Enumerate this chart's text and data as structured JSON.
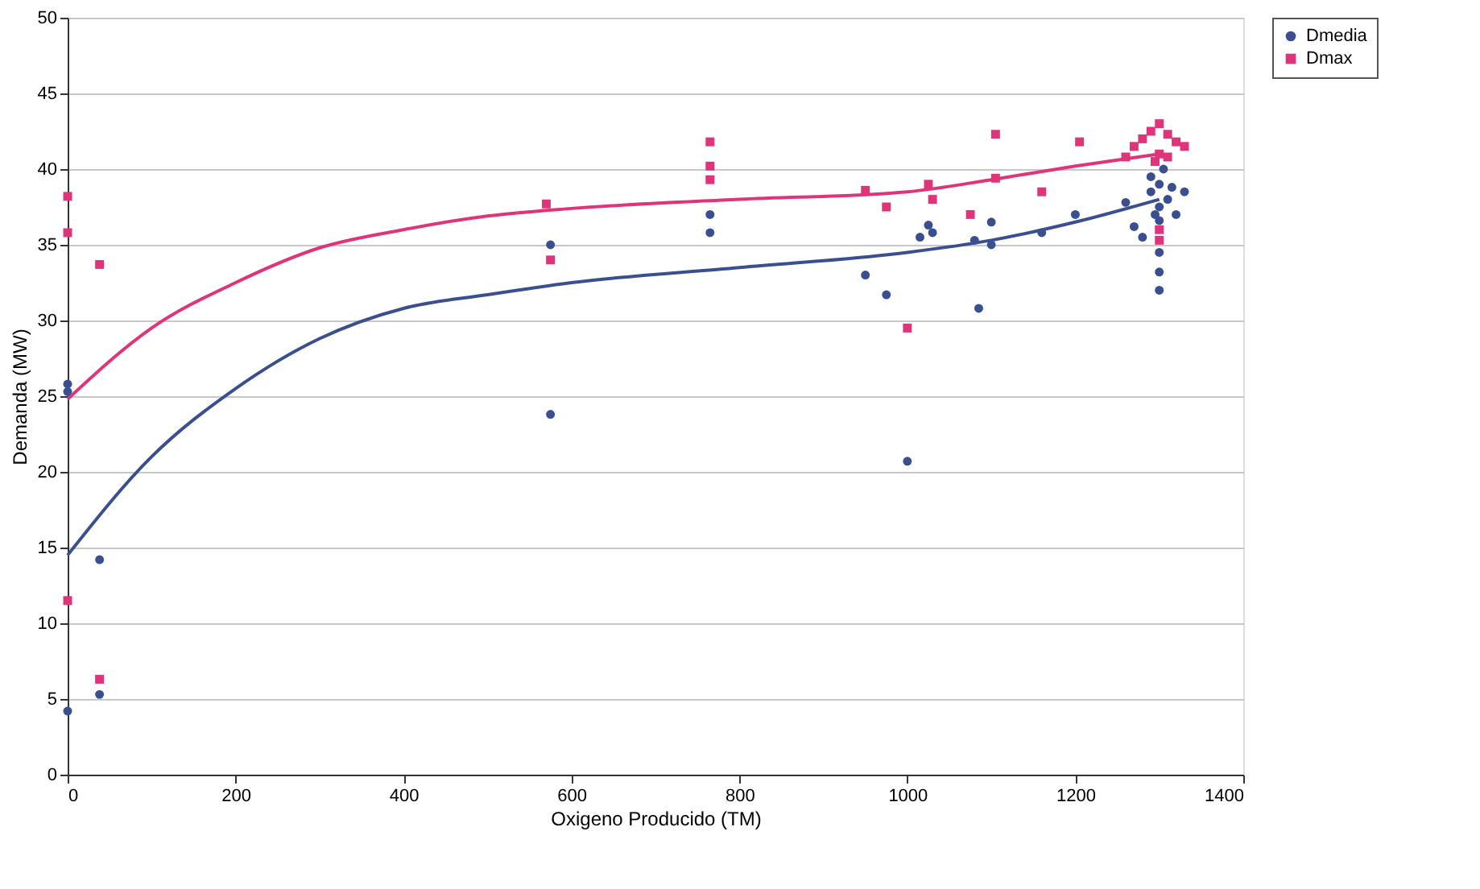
{
  "chart_data": {
    "type": "scatter",
    "xlabel": "Oxigeno Producido (TM)",
    "ylabel": "Demanda (MW)",
    "xlim": [
      0,
      1400
    ],
    "xticks": [
      0,
      200,
      400,
      600,
      800,
      1000,
      1200,
      1400
    ],
    "ylim": [
      0,
      50
    ],
    "yticks": [
      0,
      5,
      10,
      15,
      20,
      25,
      30,
      35,
      40,
      45,
      50
    ],
    "grid": "y",
    "legend": "right",
    "series": [
      {
        "name": "Dmedia",
        "color": "#3a4f8f",
        "marker": "circle",
        "x": [
          0,
          0,
          0,
          38,
          38,
          575,
          575,
          765,
          765,
          950,
          975,
          1000,
          1015,
          1025,
          1030,
          1085,
          1080,
          1100,
          1100,
          1160,
          1200,
          1260,
          1270,
          1280,
          1290,
          1300,
          1300,
          1300,
          1300,
          1300,
          1300,
          1310,
          1320,
          1330,
          1290,
          1305,
          1295,
          1315
        ],
        "values": [
          4.2,
          25.8,
          25.3,
          14.2,
          5.3,
          35,
          23.8,
          37,
          35.8,
          33,
          31.7,
          20.7,
          35.5,
          36.3,
          35.8,
          30.8,
          35.3,
          36.5,
          35,
          35.8,
          37,
          37.8,
          36.2,
          35.5,
          38.5,
          39,
          37.5,
          36.6,
          34.5,
          33.2,
          32,
          38,
          37,
          38.5,
          39.5,
          40,
          37,
          38.8
        ]
      },
      {
        "name": "Dmax",
        "color": "#e0347a",
        "marker": "square",
        "x": [
          0,
          0,
          0,
          38,
          38,
          570,
          575,
          765,
          765,
          765,
          950,
          975,
          1000,
          1025,
          1030,
          1075,
          1105,
          1105,
          1160,
          1205,
          1260,
          1270,
          1280,
          1290,
          1300,
          1300,
          1310,
          1320,
          1330,
          1300,
          1300,
          1295,
          1310
        ],
        "values": [
          38.2,
          35.8,
          11.5,
          33.7,
          6.3,
          37.7,
          34,
          41.8,
          40.2,
          39.3,
          38.6,
          37.5,
          29.5,
          39,
          38,
          37,
          42.3,
          39.4,
          38.5,
          41.8,
          40.8,
          41.5,
          42,
          42.5,
          43,
          41,
          42.3,
          41.8,
          41.5,
          36,
          35.3,
          40.5,
          40.8
        ]
      },
      {
        "type": "line",
        "color": "#3a4f8f",
        "line_style": "solid",
        "x": [
          0,
          100,
          200,
          300,
          400,
          500,
          600,
          800,
          1000,
          1100,
          1200,
          1300
        ],
        "values": [
          14.5,
          21,
          25.5,
          28.8,
          30.8,
          31.7,
          32.5,
          33.5,
          34.5,
          35.3,
          36.5,
          38
        ]
      },
      {
        "type": "line",
        "color": "#e0347a",
        "line_style": "solid",
        "x": [
          0,
          100,
          200,
          300,
          400,
          500,
          600,
          800,
          1000,
          1100,
          1200,
          1300
        ],
        "values": [
          24.8,
          29.5,
          32.5,
          34.8,
          36,
          36.9,
          37.4,
          38,
          38.5,
          39.3,
          40.2,
          41
        ]
      }
    ]
  }
}
